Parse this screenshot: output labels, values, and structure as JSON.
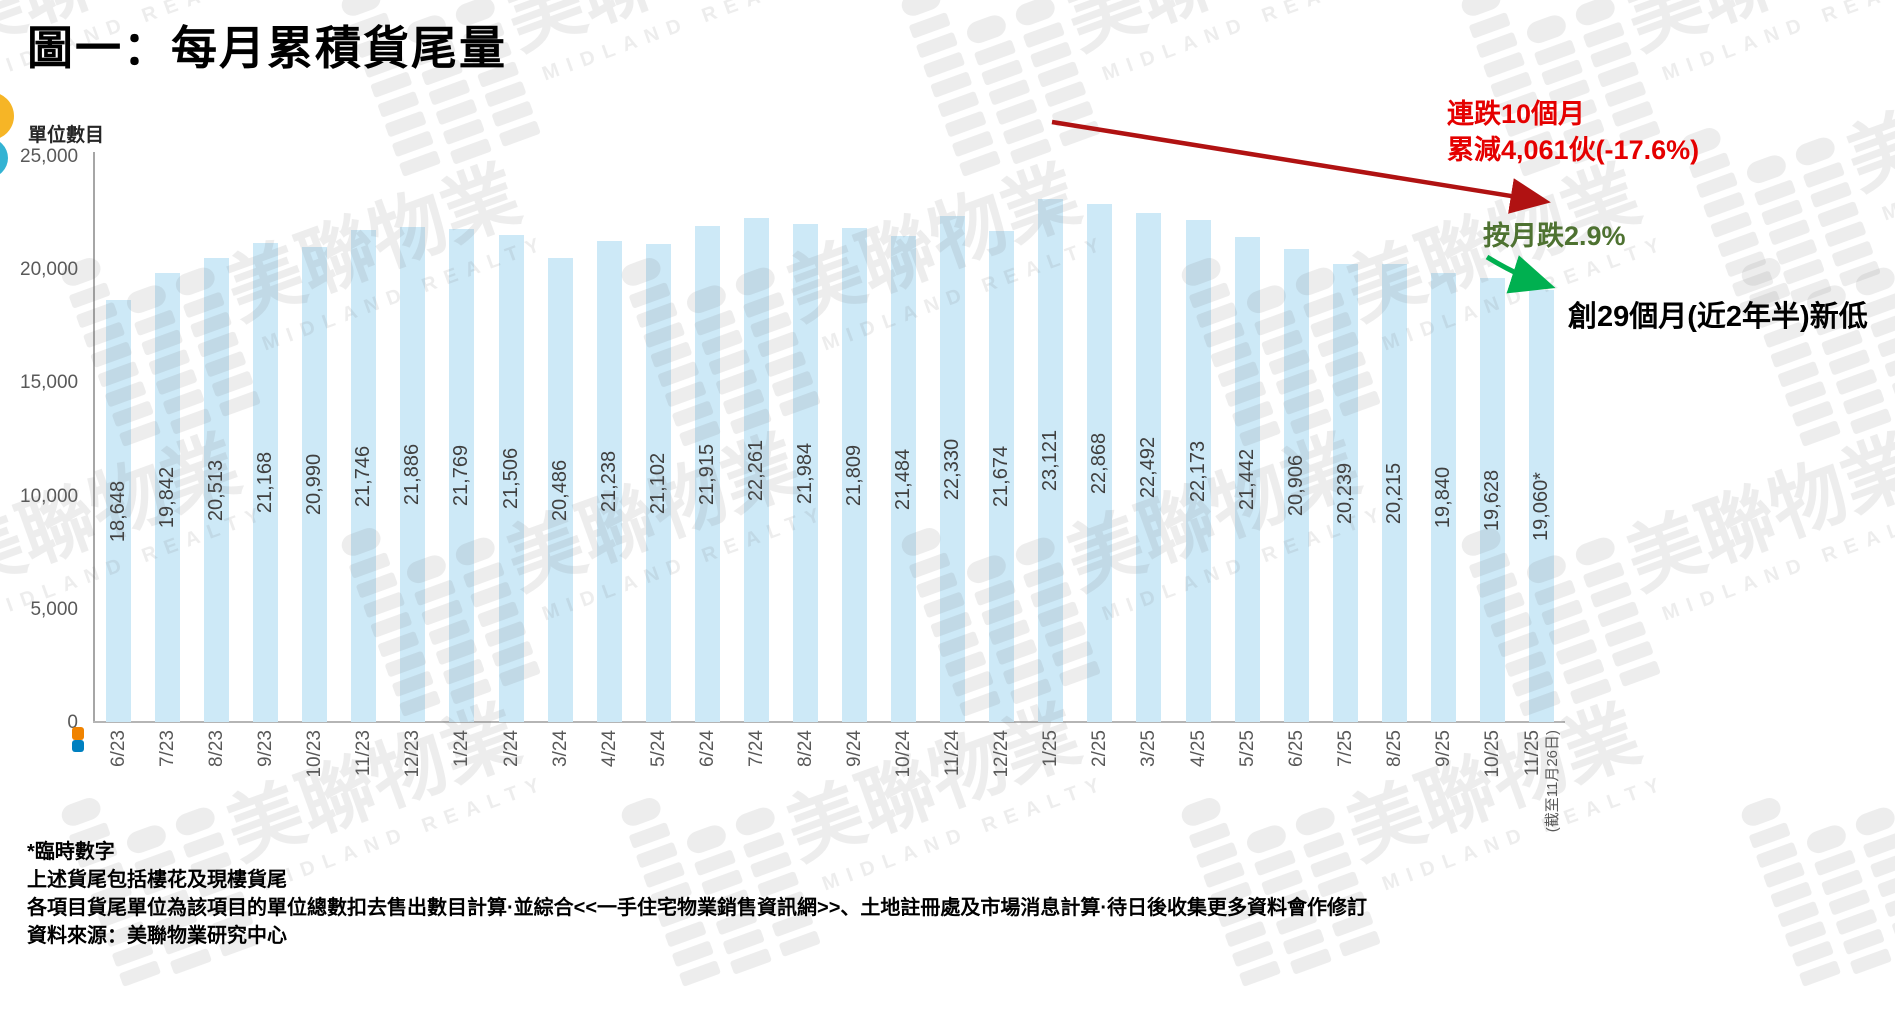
{
  "title": "圖一：每月累積貨尾量",
  "watermark": {
    "brand_cn": "美聯物業",
    "brand_en": "MIDLAND REALTY"
  },
  "chart_data": {
    "type": "bar",
    "title": "圖一：每月累積貨尾量",
    "ylabel": "單位數目",
    "xlabel": "",
    "ylim": [
      0,
      25000
    ],
    "yticks": [
      "0",
      "5,000",
      "10,000",
      "15,000",
      "20,000",
      "25,000"
    ],
    "grid": false,
    "bar_color": "#cde9f7",
    "categories": [
      "6/23",
      "7/23",
      "8/23",
      "9/23",
      "10/23",
      "11/23",
      "12/23",
      "1/24",
      "2/24",
      "3/24",
      "4/24",
      "5/24",
      "6/24",
      "7/24",
      "8/24",
      "9/24",
      "10/24",
      "11/24",
      "12/24",
      "1/25",
      "2/25",
      "3/25",
      "4/25",
      "5/25",
      "6/25",
      "7/25",
      "8/25",
      "9/25",
      "10/25",
      "11/25"
    ],
    "values": [
      18648,
      19842,
      20513,
      21168,
      20990,
      21746,
      21886,
      21769,
      21506,
      20486,
      21238,
      21102,
      21915,
      22261,
      21984,
      21809,
      21484,
      22330,
      21674,
      23121,
      22868,
      22492,
      22173,
      21442,
      20906,
      20239,
      20215,
      19840,
      19628,
      19060
    ],
    "bar_labels": [
      "18,648",
      "19,842",
      "20,513",
      "21,168",
      "20,990",
      "21,746",
      "21,886",
      "21,769",
      "21,506",
      "20,486",
      "21,238",
      "21,102",
      "21,915",
      "22,261",
      "21,984",
      "21,809",
      "21,484",
      "22,330",
      "21,674",
      "23,121",
      "22,868",
      "22,492",
      "22,173",
      "21,442",
      "20,906",
      "20,239",
      "20,215",
      "19,840",
      "19,628",
      "19,060*"
    ],
    "last_category_note": "(截至11月26日)"
  },
  "annotations": {
    "red_line1": "連跌10個月",
    "red_line2": "累減4,061伙(-17.6%)",
    "red_text_color": "#e50000",
    "red_arrow_color": "#b01212",
    "green_label": "按月跌2.9%",
    "green_text_color": "#4e7231",
    "green_arrow_color": "#00b050",
    "black_label": "創29個月(近2年半)新低"
  },
  "footnotes": [
    "*臨時數字",
    "上述貨尾包括樓花及現樓貨尾",
    "各項目貨尾單位為該項目的單位總數扣去售出數目計算·並綜合<<一手住宅物業銷售資訊網>>、土地註冊處及市場消息計算·待日後收集更多資料會作修訂",
    "資料來源：美聯物業研究中心"
  ]
}
